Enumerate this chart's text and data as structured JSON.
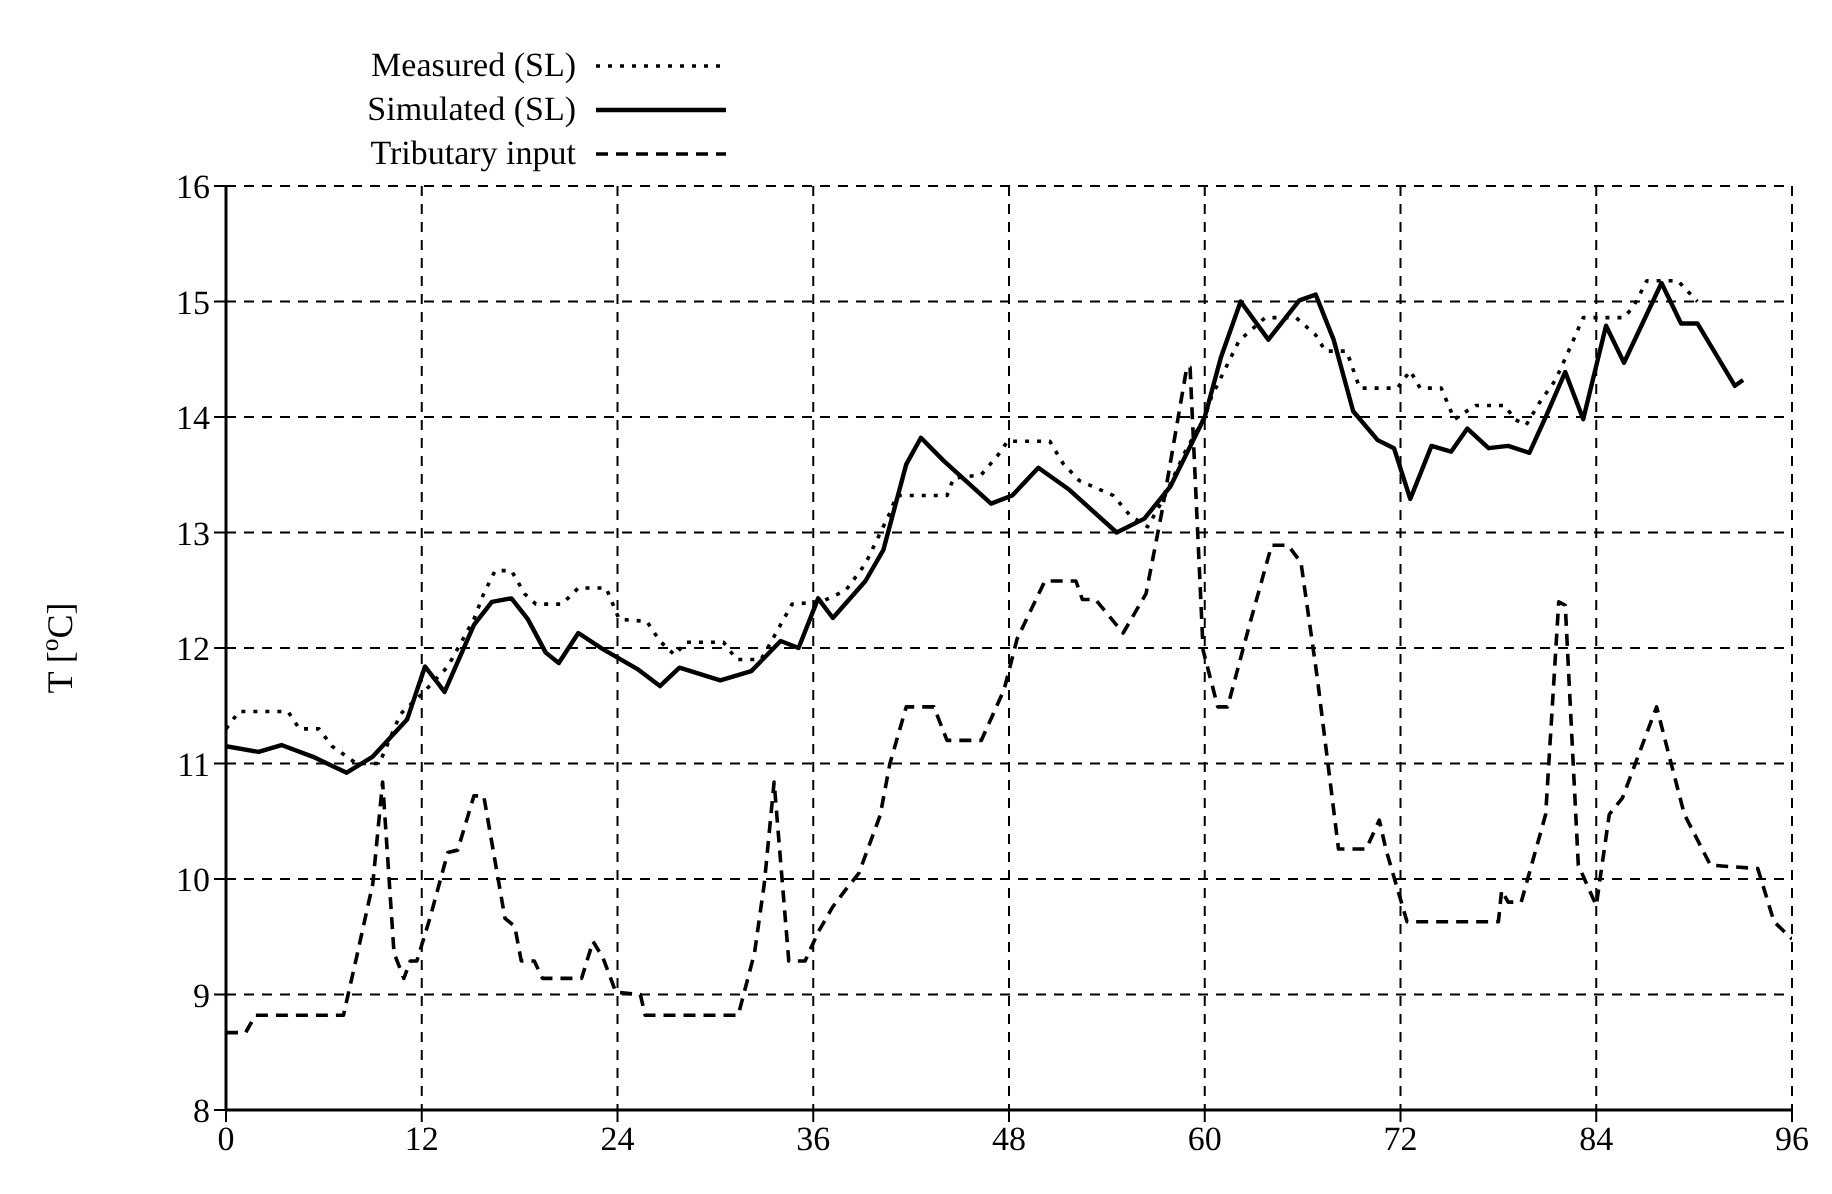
{
  "chart_data": {
    "type": "line",
    "ylabel": "T [$^{o}$C]",
    "xlim": [
      0,
      96
    ],
    "xticks": [
      0,
      12,
      24,
      36,
      48,
      60,
      72,
      84,
      96
    ],
    "ylim": [
      8,
      16
    ],
    "yticks": [
      8,
      9,
      10,
      11,
      12,
      13,
      14,
      15,
      16
    ],
    "grid": true,
    "legend": "top",
    "marker": "none",
    "series": [
      {
        "name": "Measured (SL)",
        "color": "#000000",
        "line_style": "dotted",
        "x": [
          0,
          0.8,
          3.8,
          4.5,
          5.7,
          6.5,
          8,
          9.4,
          10.7,
          12,
          13.6,
          15.2,
          15.8,
          16.5,
          17.5,
          18.3,
          19,
          20.6,
          21.6,
          23.3,
          24.1,
          25.8,
          26.6,
          27.5,
          28.2,
          30.5,
          31.3,
          32.8,
          33.6,
          34.7,
          36.5,
          38,
          39.2,
          40.7,
          41.1,
          44.2,
          44.6,
          46.3,
          47.5,
          47.9,
          50.5,
          51.3,
          52.3,
          54.4,
          55.4,
          56.5,
          57.5,
          58.8,
          60,
          60.4,
          62.1,
          63.7,
          65.6,
          66.8,
          67.4,
          68.7,
          69.5,
          71.8,
          72.6,
          73.2,
          74.5,
          75.3,
          76.6,
          78.4,
          79,
          79.7,
          80.5,
          81.5,
          82.3,
          83.2,
          85.7,
          86.3,
          87.1,
          89,
          90.2
        ],
        "values": [
          11.3,
          11.45,
          11.45,
          11.3,
          11.3,
          11.15,
          11.0,
          11.0,
          11.43,
          11.6,
          11.84,
          12.25,
          12.47,
          12.67,
          12.67,
          12.47,
          12.38,
          12.38,
          12.52,
          12.52,
          12.25,
          12.23,
          12.06,
          11.94,
          12.05,
          12.05,
          11.9,
          11.9,
          12.1,
          12.38,
          12.4,
          12.5,
          12.73,
          13.17,
          13.32,
          13.32,
          13.47,
          13.5,
          13.7,
          13.79,
          13.79,
          13.6,
          13.45,
          13.32,
          13.15,
          13.05,
          13.3,
          13.7,
          14.0,
          14.17,
          14.66,
          14.86,
          14.86,
          14.71,
          14.57,
          14.57,
          14.25,
          14.25,
          14.4,
          14.25,
          14.25,
          13.98,
          14.1,
          14.1,
          13.98,
          13.93,
          14.12,
          14.32,
          14.57,
          14.86,
          14.86,
          14.96,
          15.18,
          15.18,
          15.0
        ]
      },
      {
        "name": "Simulated (SL)",
        "color": "#000000",
        "line_style": "solid",
        "x": [
          0,
          2,
          3.4,
          5.3,
          7.4,
          9,
          11.1,
          12.2,
          13.4,
          15.2,
          16.3,
          17.5,
          18.5,
          19.6,
          20.4,
          21.6,
          23.1,
          25.2,
          26.6,
          27.8,
          30.3,
          32.2,
          34,
          35.1,
          36.3,
          37.2,
          39.2,
          40.3,
          41.7,
          42.6,
          44,
          46.9,
          48.2,
          49.8,
          51.7,
          54.6,
          56.3,
          57.9,
          60,
          61,
          62.2,
          63.9,
          65.8,
          66.8,
          67.9,
          69.1,
          70.6,
          71.6,
          72.6,
          73.9,
          75.1,
          76.1,
          77.4,
          78.6,
          79.9,
          80.9,
          82.1,
          83.2,
          84.6,
          85.7,
          88,
          89.2,
          90.2,
          92.5,
          93
        ],
        "values": [
          11.15,
          11.1,
          11.16,
          11.06,
          10.92,
          11.06,
          11.38,
          11.84,
          11.62,
          12.2,
          12.4,
          12.43,
          12.25,
          11.96,
          11.87,
          12.13,
          11.99,
          11.82,
          11.67,
          11.83,
          11.72,
          11.8,
          12.06,
          12.0,
          12.43,
          12.26,
          12.58,
          12.85,
          13.59,
          13.82,
          13.62,
          13.25,
          13.32,
          13.56,
          13.37,
          13.0,
          13.12,
          13.4,
          14.0,
          14.52,
          15.0,
          14.67,
          15.01,
          15.06,
          14.67,
          14.05,
          13.8,
          13.73,
          13.29,
          13.75,
          13.7,
          13.9,
          13.73,
          13.75,
          13.69,
          14.0,
          14.39,
          13.98,
          14.79,
          14.47,
          15.16,
          14.81,
          14.81,
          14.27,
          14.32
        ]
      },
      {
        "name": "Tributary input",
        "color": "#000000",
        "line_style": "dashed",
        "x": [
          0,
          1.2,
          1.8,
          7.2,
          8,
          9,
          9.6,
          10.3,
          10.9,
          11.3,
          11.7,
          12.5,
          13.6,
          14.2,
          15.2,
          15.8,
          17.1,
          17.7,
          18.1,
          18.9,
          19.4,
          21.8,
          22.5,
          23.1,
          23.9,
          25.4,
          25.7,
          31.4,
          32.4,
          33,
          33.6,
          34.5,
          35.5,
          36.3,
          37.2,
          38,
          38.8,
          40.1,
          40.7,
          41.7,
          43.4,
          44.2,
          46.3,
          47.7,
          48.5,
          50.2,
          52.1,
          52.5,
          53.3,
          55,
          56.4,
          57.4,
          58.9,
          59.1,
          59.9,
          60.8,
          61.4,
          62.8,
          64.1,
          65.1,
          65.9,
          66.9,
          68.2,
          69.9,
          70.7,
          71.1,
          72.4,
          78,
          78.2,
          78.6,
          79.4,
          80.9,
          81.7,
          82.1,
          82.9,
          84,
          84.8,
          85.6,
          87.7,
          88.5,
          89.4,
          91,
          93.9,
          94.9,
          96
        ],
        "values": [
          8.67,
          8.67,
          8.82,
          8.82,
          9.32,
          9.96,
          10.84,
          9.36,
          9.14,
          9.29,
          9.29,
          9.66,
          10.23,
          10.25,
          10.72,
          10.72,
          9.66,
          9.59,
          9.29,
          9.29,
          9.14,
          9.14,
          9.46,
          9.32,
          9.02,
          9.0,
          8.82,
          8.82,
          9.36,
          9.96,
          10.84,
          9.29,
          9.29,
          9.54,
          9.76,
          9.91,
          10.05,
          10.55,
          11.0,
          11.49,
          11.49,
          11.2,
          11.2,
          11.64,
          12.08,
          12.58,
          12.58,
          12.42,
          12.42,
          12.13,
          12.47,
          13.2,
          14.43,
          14.43,
          11.98,
          11.49,
          11.49,
          12.23,
          12.89,
          12.89,
          12.74,
          11.74,
          10.26,
          10.26,
          10.51,
          10.26,
          9.63,
          9.63,
          9.9,
          9.8,
          9.8,
          10.56,
          12.4,
          12.37,
          10.12,
          9.77,
          10.56,
          10.7,
          11.49,
          11.05,
          10.56,
          10.12,
          10.09,
          9.63,
          9.48
        ]
      }
    ]
  }
}
